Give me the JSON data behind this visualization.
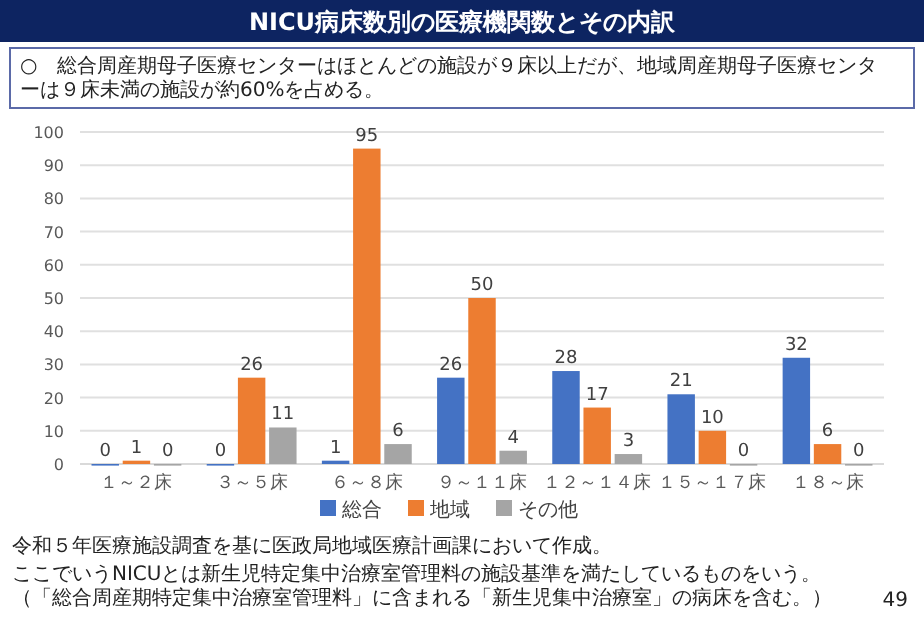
{
  "chart_data": {
    "type": "bar",
    "title": "NICU病床数別の医療機関数とその内訳",
    "subtitle": "○　総合周産期母子医療センターはほとんどの施設が９床以上だが、地域周産期母子医療センターは９床未満の施設が約60%を占める。",
    "categories": [
      "１～２床",
      "３～５床",
      "６～８床",
      "９～１１床",
      "１２～１４床",
      "１５～１７床",
      "１８～床"
    ],
    "series": [
      {
        "name": "総合",
        "color": "#4472c4",
        "values": [
          0,
          0,
          1,
          26,
          28,
          21,
          32
        ]
      },
      {
        "name": "地域",
        "color": "#ed7d31",
        "values": [
          1,
          26,
          95,
          50,
          17,
          10,
          6
        ]
      },
      {
        "name": "その他",
        "color": "#a5a5a5",
        "values": [
          0,
          11,
          6,
          4,
          3,
          0,
          0
        ]
      }
    ],
    "ylim": [
      0,
      100
    ],
    "yticks": [
      0,
      10,
      20,
      30,
      40,
      50,
      60,
      70,
      80,
      90,
      100
    ],
    "grid": "y",
    "legend": "bottom",
    "data_labels": true,
    "annotations": [
      "令和５年医療施設調査を基に医政局地域医療計画課において作成。",
      "ここでいうNICUとは新生児特定集中治療室管理料の施設基準を満たしているものをいう。",
      "（「総合周産期特定集中治療室管理料」に含まれる「新生児集中治療室」の病床を含む。）",
      "49"
    ]
  }
}
